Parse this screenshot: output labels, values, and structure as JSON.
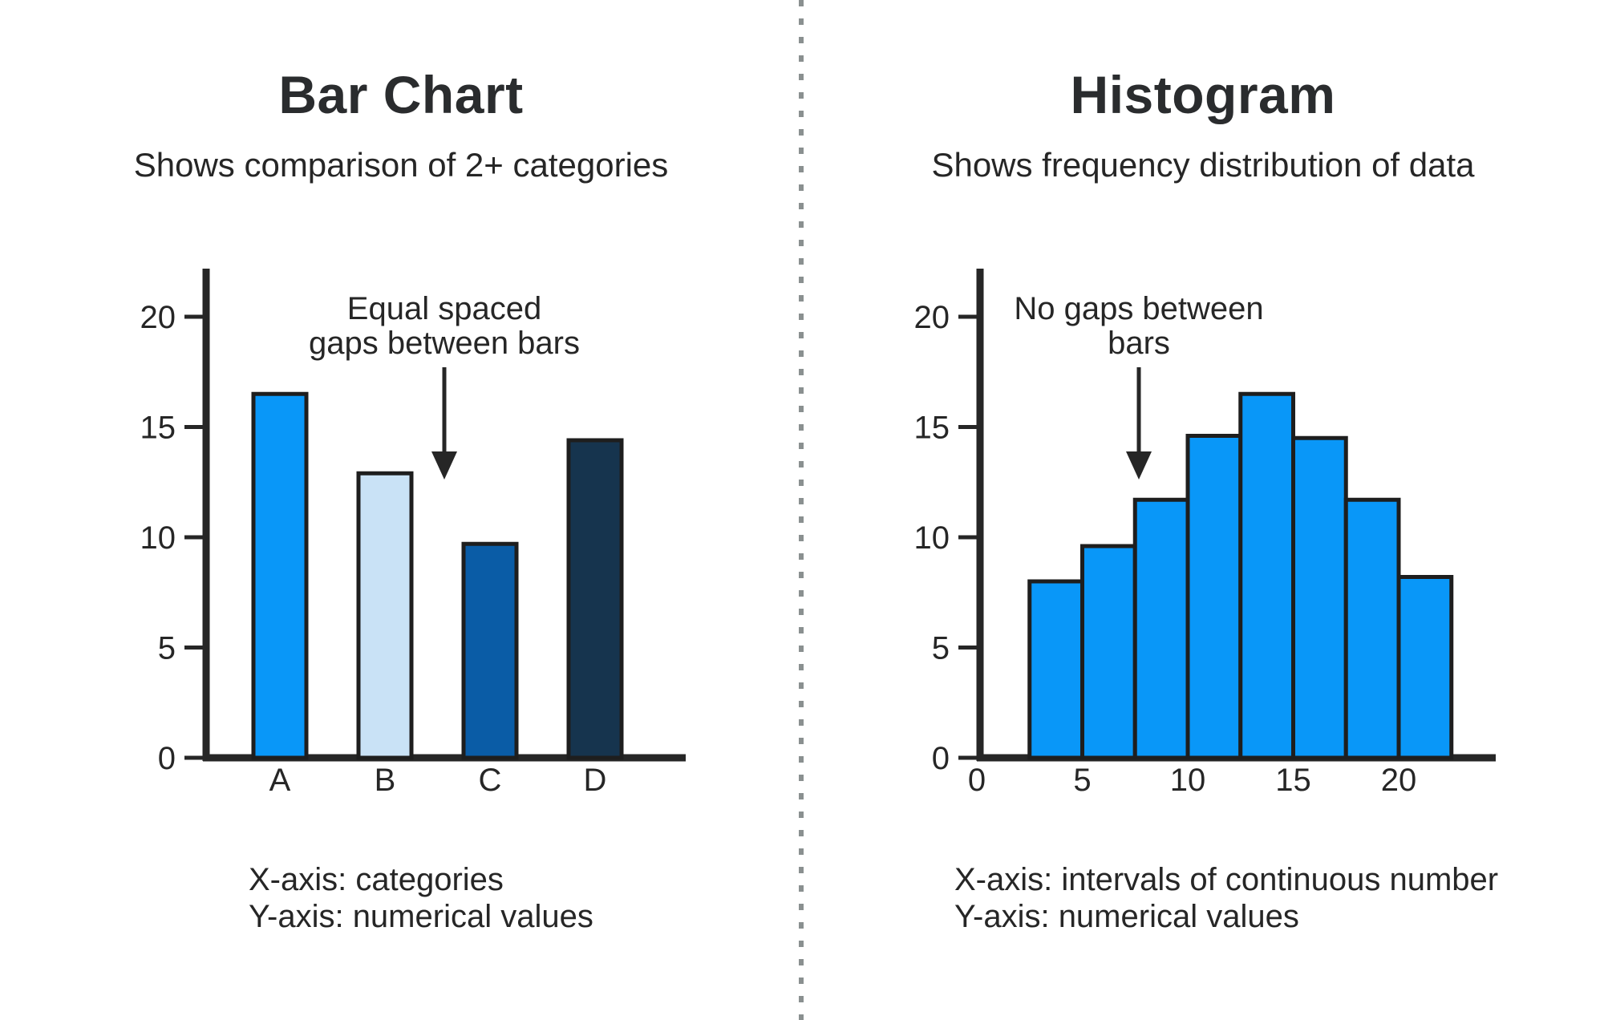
{
  "colors": {
    "ink": "#262626",
    "bar_outline": "#1E1E1E",
    "divider_gray": "#8A9090",
    "title_text": "#2A2C2E",
    "bright_blue": "#0997F8",
    "light_blue": "#C9E2F6",
    "medium_blue": "#0A5CA6",
    "dark_navy": "#16344E"
  },
  "left_panel": {
    "title": "Bar Chart",
    "subtitle": "Shows comparison of 2+ categories",
    "annotation_lines": [
      "Equal spaced",
      "gaps between bars"
    ],
    "caption_lines": [
      "X-axis: categories",
      "Y-axis: numerical values"
    ]
  },
  "right_panel": {
    "title": "Histogram",
    "subtitle": "Shows frequency distribution of data",
    "annotation_lines": [
      "No gaps between",
      "bars"
    ],
    "caption_lines": [
      "X-axis: intervals of continuous number",
      "Y-axis: numerical values"
    ]
  },
  "chart_data": [
    {
      "type": "bar",
      "title": "Bar Chart",
      "categories": [
        "A",
        "B",
        "C",
        "D"
      ],
      "values": [
        16.5,
        12.9,
        9.7,
        14.4
      ],
      "bar_colors": [
        "#0997F8",
        "#C9E2F6",
        "#0A5CA6",
        "#16344E"
      ],
      "yticks": [
        0,
        5,
        10,
        15,
        20
      ],
      "ylim": [
        0,
        22
      ],
      "xlabel": "categories",
      "ylabel": "numerical values",
      "grid": false,
      "legend": false,
      "annotation": "Equal spaced gaps between bars"
    },
    {
      "type": "histogram",
      "title": "Histogram",
      "bin_edges": [
        2.5,
        5,
        7.5,
        10,
        12.5,
        15,
        17.5,
        20,
        22.5
      ],
      "values": [
        8,
        9.6,
        11.7,
        14.6,
        16.5,
        14.5,
        11.7,
        8.2
      ],
      "bar_color": "#0997F8",
      "xticks": [
        0,
        5,
        10,
        15,
        20
      ],
      "yticks": [
        0,
        5,
        10,
        15,
        20
      ],
      "xlim": [
        0,
        24.5
      ],
      "ylim": [
        0,
        22
      ],
      "xlabel": "intervals of continuous number",
      "ylabel": "numerical values",
      "grid": false,
      "legend": false,
      "annotation": "No gaps between bars"
    }
  ]
}
